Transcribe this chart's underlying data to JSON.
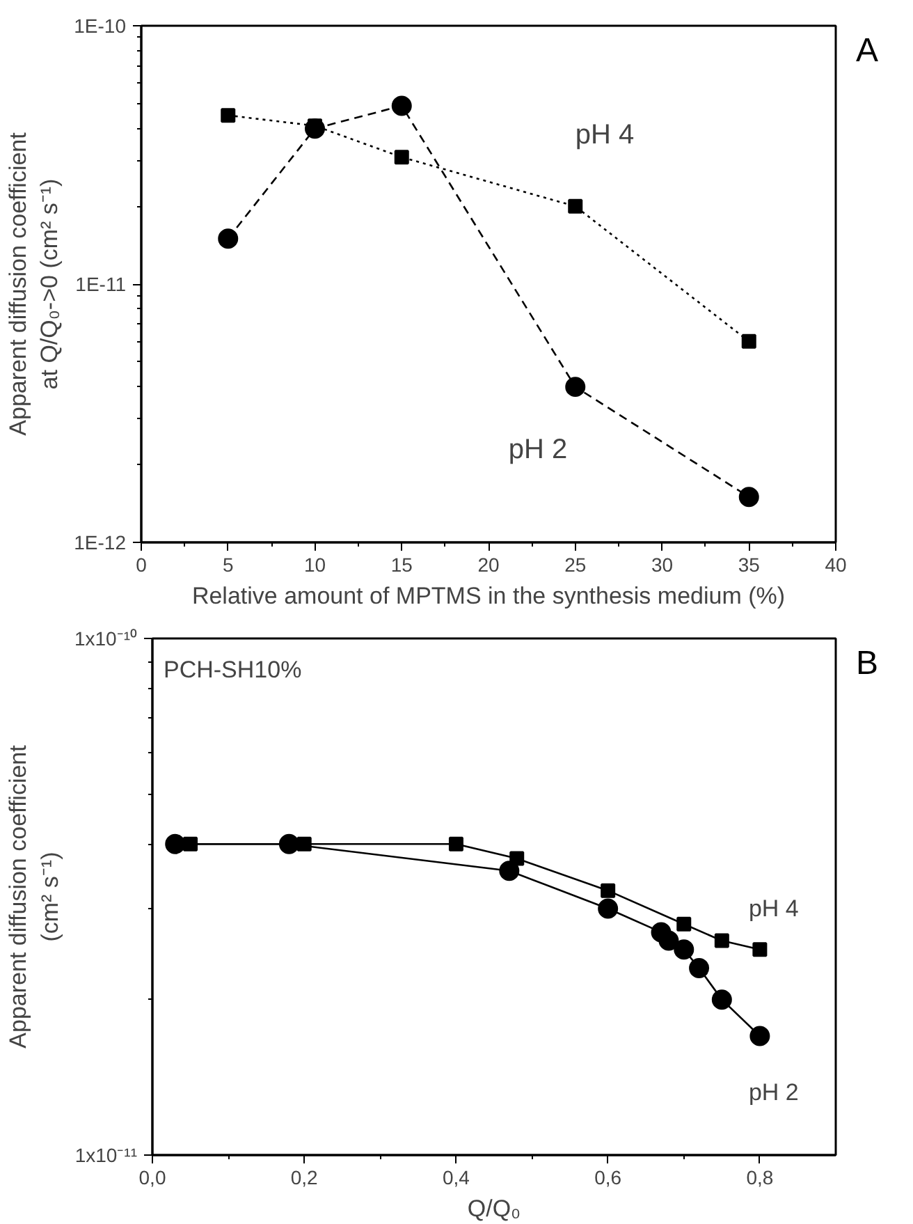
{
  "chart_data": [
    {
      "type": "line",
      "xlabel": "Relative amount of MPTMS in the synthesis medium (%)",
      "ylabel": "Apparent diffusion coefficient\nat Q/Q₀->0 (cm² s⁻¹)",
      "log": "y",
      "grid": false,
      "legend": false,
      "xlim": [
        0,
        40
      ],
      "xticks": [
        0,
        5,
        10,
        15,
        20,
        25,
        30,
        35,
        40
      ],
      "ylim": [
        1e-12,
        1e-10
      ],
      "yticks": [
        {
          "value": 1e-12,
          "label": "1E-12"
        },
        {
          "value": 1e-11,
          "label": "1E-11"
        },
        {
          "value": 1e-10,
          "label": "1E-10"
        }
      ],
      "x": [
        5,
        10,
        15,
        25,
        35
      ],
      "annotations": [
        "A"
      ],
      "series": [
        {
          "name": "pH 2",
          "color": "#000000",
          "marker": "circle",
          "line_style": "dashed",
          "values": [
            1.5e-11,
            4e-11,
            4.9e-11,
            4e-12,
            1.5e-12
          ]
        },
        {
          "name": "pH 4",
          "color": "#000000",
          "marker": "square",
          "line_style": "dotted",
          "values": [
            4.5e-11,
            4.1e-11,
            3.1e-11,
            2e-11,
            6e-12
          ]
        }
      ]
    },
    {
      "type": "line",
      "xlabel": "Q/Q₀",
      "ylabel": "Apparent diffusion coefficient\n(cm² s⁻¹)",
      "log": "y",
      "grid": false,
      "legend": false,
      "xlim": [
        0,
        0.9
      ],
      "xticks": [
        {
          "value": 0,
          "label": "0,0"
        },
        {
          "value": 0.2,
          "label": "0,2"
        },
        {
          "value": 0.4,
          "label": "0,4"
        },
        {
          "value": 0.6,
          "label": "0,6"
        },
        {
          "value": 0.8,
          "label": "0,8"
        }
      ],
      "ylim": [
        1e-11,
        1e-10
      ],
      "yticks": [
        {
          "value": 1e-11,
          "label": "1x10⁻¹¹"
        },
        {
          "value": 1e-10,
          "label": "1x10⁻¹⁰"
        }
      ],
      "annotations": [
        "B",
        "PCH-SH10%"
      ],
      "series": [
        {
          "name": "pH 4",
          "color": "#000000",
          "marker": "square",
          "line_style": "solid",
          "x": [
            0.05,
            0.2,
            0.4,
            0.48,
            0.6,
            0.7,
            0.75,
            0.8
          ],
          "values": [
            4e-11,
            4e-11,
            4e-11,
            3.75e-11,
            3.25e-11,
            2.8e-11,
            2.6e-11,
            2.5e-11
          ]
        },
        {
          "name": "pH 2",
          "color": "#000000",
          "marker": "circle",
          "line_style": "solid",
          "x": [
            0.03,
            0.18,
            0.47,
            0.6,
            0.67,
            0.68,
            0.7,
            0.72,
            0.75,
            0.8
          ],
          "values": [
            4e-11,
            4e-11,
            3.55e-11,
            3e-11,
            2.7e-11,
            2.6e-11,
            2.5e-11,
            2.3e-11,
            2e-11,
            1.7e-11
          ]
        }
      ]
    }
  ]
}
